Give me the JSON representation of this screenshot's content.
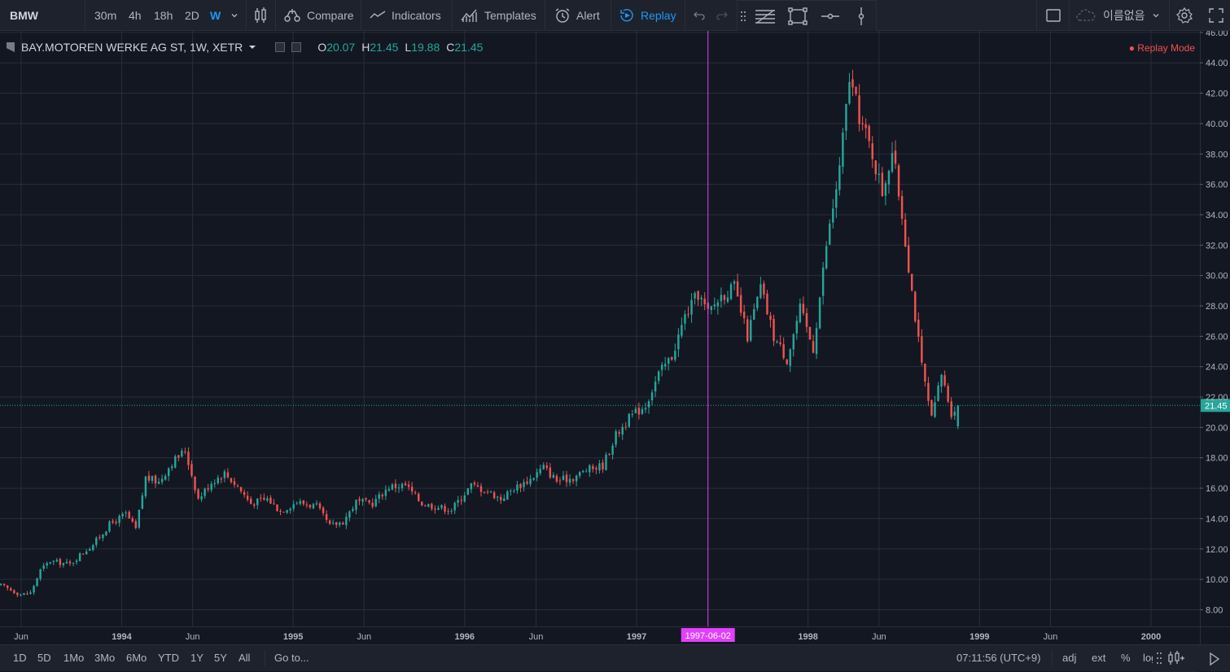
{
  "toolbar": {
    "symbol": "BMW",
    "intervals": [
      {
        "label": "30m",
        "active": false
      },
      {
        "label": "4h",
        "active": false
      },
      {
        "label": "18h",
        "active": false
      },
      {
        "label": "2D",
        "active": false
      },
      {
        "label": "W",
        "active": true
      }
    ],
    "compare_label": "Compare",
    "indicators_label": "Indicators",
    "templates_label": "Templates",
    "alert_label": "Alert",
    "replay_label": "Replay",
    "account_label": "이름없음"
  },
  "legend": {
    "title": "BAY.MOTOREN WERKE AG ST, 1W, XETR",
    "o_key": "O",
    "o_val": "20.07",
    "h_key": "H",
    "h_val": "21.45",
    "l_key": "L",
    "l_val": "19.88",
    "c_key": "C",
    "c_val": "21.45"
  },
  "replay_mode_label": "Replay Mode",
  "colors": {
    "up": "#26a69a",
    "down": "#ef5350",
    "replay_line": "#e040fb",
    "accent": "#2196f3",
    "price_tag": "#26a69a"
  },
  "bottom": {
    "ranges": [
      "1D",
      "5D",
      "1Mo",
      "3Mo",
      "6Mo",
      "YTD",
      "1Y",
      "5Y",
      "All"
    ],
    "goto_label": "Go to...",
    "clock": "07:11:56 (UTC+9)",
    "adj": "adj",
    "ext": "ext",
    "percent": "%",
    "log": "log"
  },
  "chart_data": {
    "type": "candlestick",
    "title": "BAY.MOTOREN WERKE AG ST, 1W, XETR",
    "y_ticks": [
      "8.00",
      "10.00",
      "12.00",
      "14.00",
      "16.00",
      "18.00",
      "20.00",
      "22.00",
      "24.00",
      "26.00",
      "28.00",
      "30.00",
      "32.00",
      "34.00",
      "36.00",
      "38.00",
      "40.00",
      "42.00",
      "44.00",
      "46.00"
    ],
    "ylim": [
      6.9,
      46.1
    ],
    "x_ticks": [
      {
        "label": "Jun",
        "date": "1993-06-01"
      },
      {
        "label": "1994",
        "date": "1994-01-01"
      },
      {
        "label": "Jun",
        "date": "1994-06-01"
      },
      {
        "label": "1995",
        "date": "1995-01-01"
      },
      {
        "label": "Jun",
        "date": "1995-06-01"
      },
      {
        "label": "1996",
        "date": "1996-01-01"
      },
      {
        "label": "Jun",
        "date": "1996-06-01"
      },
      {
        "label": "1997",
        "date": "1997-01-01"
      },
      {
        "label": "1998",
        "date": "1998-01-01"
      },
      {
        "label": "Jun",
        "date": "1998-06-01"
      },
      {
        "label": "1999",
        "date": "1999-01-01"
      },
      {
        "label": "Jun",
        "date": "1999-06-01"
      },
      {
        "label": "2000",
        "date": "2000-01-01"
      }
    ],
    "xlim": [
      "1993-04-17",
      "2000-04-14"
    ],
    "replay_date": "1997-06-02",
    "last_price": "21.45",
    "path": [
      [
        "1993-04-19",
        9.6
      ],
      [
        "1993-05-31",
        9.0
      ],
      [
        "1993-06-21",
        9.1
      ],
      [
        "1993-07-12",
        10.6
      ],
      [
        "1993-08-02",
        11.2
      ],
      [
        "1993-09-13",
        11.0
      ],
      [
        "1993-10-04",
        11.6
      ],
      [
        "1993-11-01",
        12.3
      ],
      [
        "1993-12-06",
        13.6
      ],
      [
        "1994-01-10",
        14.3
      ],
      [
        "1994-01-31",
        13.3
      ],
      [
        "1994-02-21",
        16.7
      ],
      [
        "1994-03-21",
        16.4
      ],
      [
        "1994-04-18",
        17.7
      ],
      [
        "1994-05-16",
        18.5
      ],
      [
        "1994-06-13",
        15.3
      ],
      [
        "1994-07-11",
        16.4
      ],
      [
        "1994-08-08",
        17.0
      ],
      [
        "1994-09-05",
        16.1
      ],
      [
        "1994-10-03",
        15.0
      ],
      [
        "1994-11-07",
        15.3
      ],
      [
        "1994-12-05",
        14.5
      ],
      [
        "1995-01-09",
        15.1
      ],
      [
        "1995-02-20",
        14.8
      ],
      [
        "1995-03-20",
        13.5
      ],
      [
        "1995-04-17",
        13.8
      ],
      [
        "1995-05-15",
        15.1
      ],
      [
        "1995-06-19",
        15.0
      ],
      [
        "1995-07-24",
        16.1
      ],
      [
        "1995-08-28",
        16.2
      ],
      [
        "1995-10-02",
        15.0
      ],
      [
        "1995-10-30",
        14.8
      ],
      [
        "1995-12-04",
        14.6
      ],
      [
        "1996-01-15",
        16.2
      ],
      [
        "1996-02-19",
        15.8
      ],
      [
        "1996-03-18",
        15.3
      ],
      [
        "1996-04-15",
        16.0
      ],
      [
        "1996-05-20",
        16.6
      ],
      [
        "1996-06-17",
        17.4
      ],
      [
        "1996-07-15",
        16.5
      ],
      [
        "1996-08-19",
        16.7
      ],
      [
        "1996-09-16",
        17.2
      ],
      [
        "1996-10-21",
        17.5
      ],
      [
        "1996-11-18",
        19.5
      ],
      [
        "1996-12-16",
        20.6
      ],
      [
        "1997-01-20",
        21.5
      ],
      [
        "1997-02-17",
        23.5
      ],
      [
        "1997-03-17",
        24.7
      ],
      [
        "1997-04-14",
        27.3
      ],
      [
        "1997-05-12",
        28.8
      ],
      [
        "1997-06-02",
        27.5
      ],
      [
        "1997-06-30",
        28.7
      ],
      [
        "1997-07-28",
        29.2
      ],
      [
        "1997-08-25",
        26.0
      ],
      [
        "1997-09-22",
        29.2
      ],
      [
        "1997-10-20",
        26.0
      ],
      [
        "1997-11-17",
        24.5
      ],
      [
        "1997-12-15",
        27.8
      ],
      [
        "1998-01-12",
        25.2
      ],
      [
        "1998-02-09",
        32.0
      ],
      [
        "1998-03-09",
        37.0
      ],
      [
        "1998-03-30",
        43.0
      ],
      [
        "1998-04-20",
        40.5
      ],
      [
        "1998-05-18",
        38.0
      ],
      [
        "1998-06-08",
        35.5
      ],
      [
        "1998-06-29",
        38.2
      ],
      [
        "1998-07-20",
        34.0
      ],
      [
        "1998-08-10",
        29.0
      ],
      [
        "1998-08-31",
        24.0
      ],
      [
        "1998-09-21",
        20.5
      ],
      [
        "1998-10-12",
        23.5
      ],
      [
        "1998-11-02",
        21.0
      ],
      [
        "1998-11-16",
        21.45
      ]
    ]
  }
}
